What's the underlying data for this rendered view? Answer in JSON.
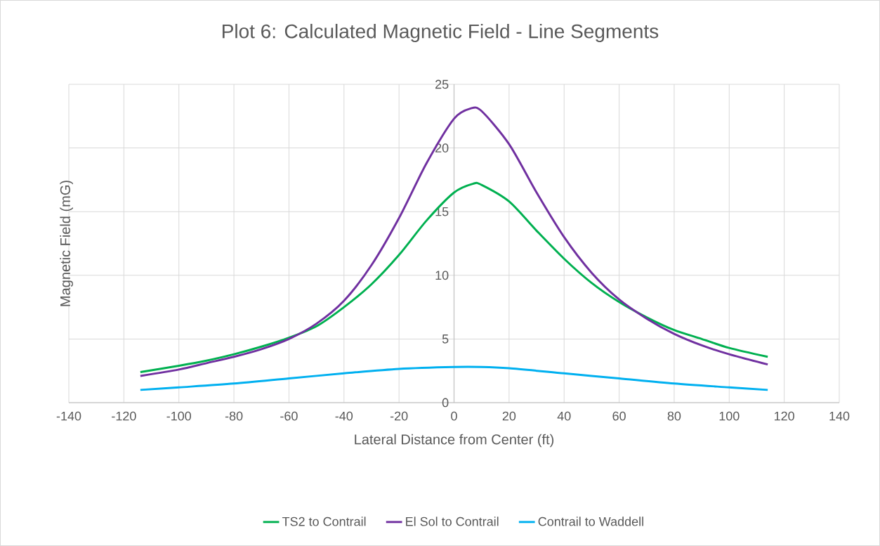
{
  "chart_data": {
    "type": "line",
    "title": "Plot 6: Calculated Magnetic Field - Line Segments",
    "xlabel": "Lateral Distance from Center (ft)",
    "ylabel": "Magnetic Field (mG)",
    "xlim": [
      -140,
      140
    ],
    "xticks": [
      -140,
      -120,
      -100,
      -80,
      -60,
      -40,
      -20,
      0,
      20,
      40,
      60,
      80,
      100,
      120,
      140
    ],
    "ylim": [
      0,
      25
    ],
    "yticks": [
      0,
      5,
      10,
      15,
      20,
      25
    ],
    "grid": true,
    "legend": "bottom",
    "marker": "none",
    "line_style": "solid",
    "series": [
      {
        "name": "TS2 to Contrail",
        "color": "#00b050",
        "x": [
          -114,
          -100,
          -90,
          -80,
          -70,
          -60,
          -50,
          -40,
          -30,
          -20,
          -10,
          0,
          7,
          10,
          20,
          30,
          40,
          50,
          60,
          70,
          80,
          90,
          100,
          114
        ],
        "values": [
          2.4,
          2.9,
          3.3,
          3.8,
          4.4,
          5.1,
          6.0,
          7.5,
          9.3,
          11.6,
          14.3,
          16.5,
          17.2,
          17.1,
          15.8,
          13.5,
          11.3,
          9.4,
          7.9,
          6.7,
          5.7,
          5.0,
          4.3,
          3.6
        ]
      },
      {
        "name": "El Sol to Contrail",
        "color": "#7030a0",
        "x": [
          -114,
          -100,
          -90,
          -80,
          -70,
          -60,
          -50,
          -40,
          -30,
          -20,
          -10,
          0,
          6,
          10,
          20,
          30,
          40,
          50,
          60,
          70,
          80,
          90,
          100,
          114
        ],
        "values": [
          2.1,
          2.6,
          3.1,
          3.6,
          4.2,
          5.0,
          6.2,
          8.0,
          10.8,
          14.5,
          18.8,
          22.3,
          23.1,
          22.9,
          20.3,
          16.5,
          13.0,
          10.2,
          8.1,
          6.6,
          5.4,
          4.5,
          3.8,
          3.0
        ]
      },
      {
        "name": "Contrail to Waddell",
        "color": "#00b0f0",
        "x": [
          -114,
          -100,
          -80,
          -60,
          -40,
          -20,
          0,
          10,
          20,
          40,
          60,
          80,
          100,
          114
        ],
        "values": [
          1.0,
          1.2,
          1.5,
          1.9,
          2.3,
          2.65,
          2.8,
          2.8,
          2.7,
          2.3,
          1.9,
          1.5,
          1.2,
          1.0
        ]
      }
    ]
  }
}
